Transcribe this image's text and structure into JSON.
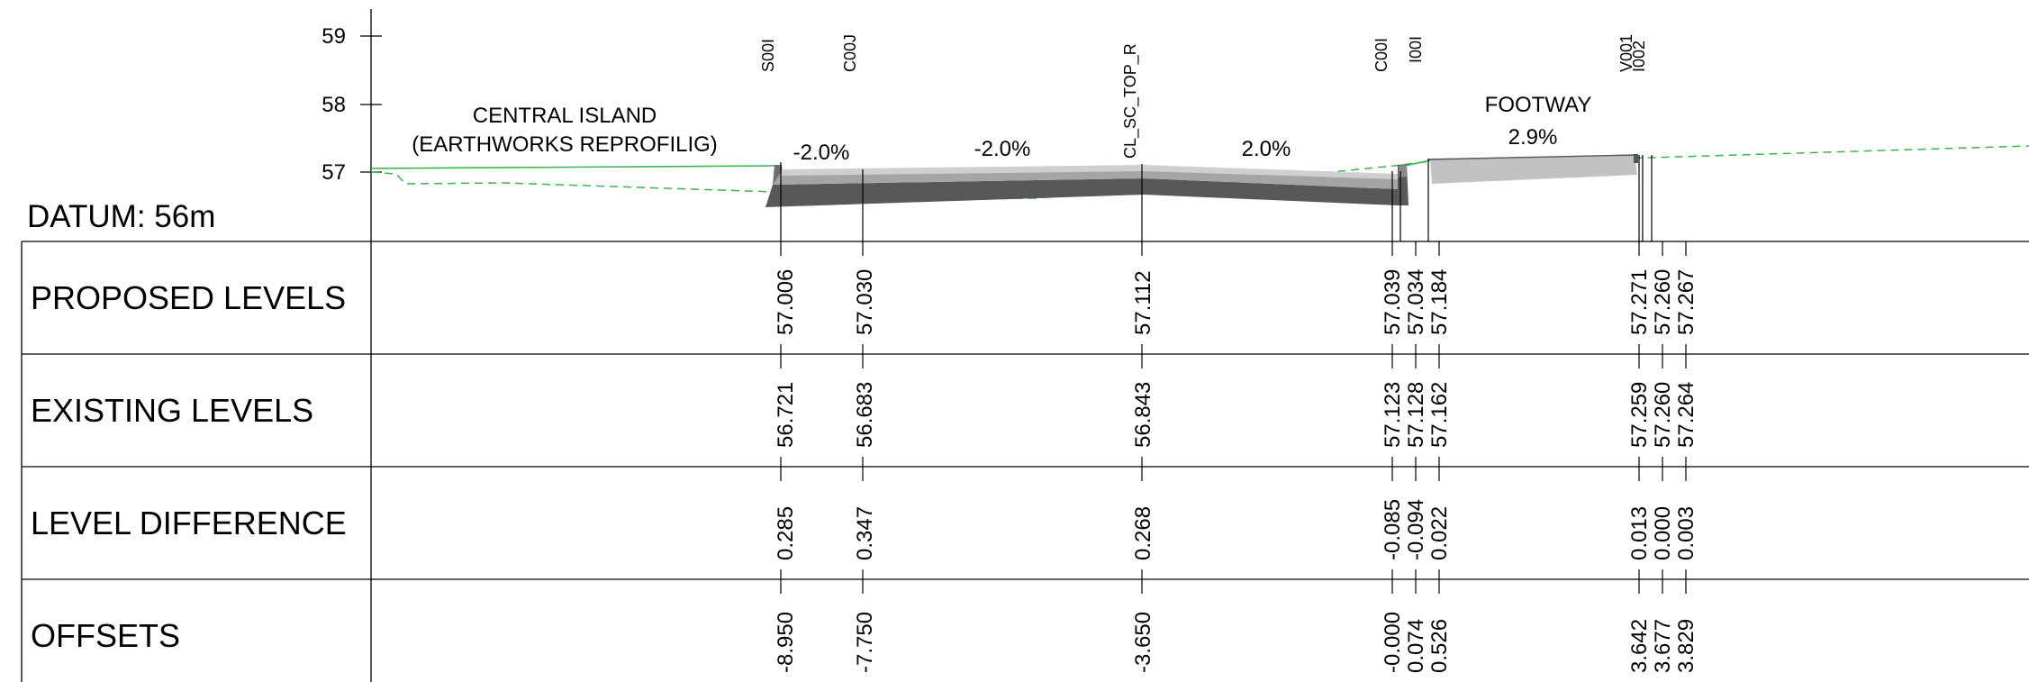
{
  "datum_label": "DATUM:  56m",
  "elevation_ticks": [
    "59",
    "58",
    "57"
  ],
  "rows": [
    "PROPOSED LEVELS",
    "EXISTING LEVELS",
    "LEVEL DIFFERENCE",
    "OFFSETS"
  ],
  "annotations": {
    "central_island_line1": "CENTRAL ISLAND",
    "central_island_line2": "(EARTHWORKS REPROFILIG)",
    "footway": "FOOTWAY",
    "grade_1": "-2.0%",
    "grade_2": "-2.0%",
    "grade_3": "2.0%",
    "grade_4": "2.9%"
  },
  "string_codes": [
    "S00I",
    "C00J",
    "CL_SC_TOP_R",
    "C00I",
    "I00I",
    "V001",
    "I002"
  ],
  "stations": [
    {
      "proposed": "57.006",
      "existing": "56.721",
      "difference": "0.285",
      "offset": "-8.950"
    },
    {
      "proposed": "57.030",
      "existing": "56.683",
      "difference": "0.347",
      "offset": "-7.750"
    },
    {
      "proposed": "57.112",
      "existing": "56.843",
      "difference": "0.268",
      "offset": "-3.650"
    },
    {
      "proposed": "57.039",
      "existing": "57.123",
      "difference": "-0.085",
      "offset": "-0.000"
    },
    {
      "proposed": "57.034",
      "existing": "57.128",
      "difference": "-0.094",
      "offset": "0.074"
    },
    {
      "proposed": "57.184",
      "existing": "57.162",
      "difference": "0.022",
      "offset": "0.526"
    },
    {
      "proposed": "57.271",
      "existing": "57.259",
      "difference": "0.013",
      "offset": "3.642"
    },
    {
      "proposed": "57.260",
      "existing": "57.260",
      "difference": "0.000",
      "offset": "3.677"
    },
    {
      "proposed": "57.267",
      "existing": "57.264",
      "difference": "0.003",
      "offset": "3.829"
    }
  ]
}
